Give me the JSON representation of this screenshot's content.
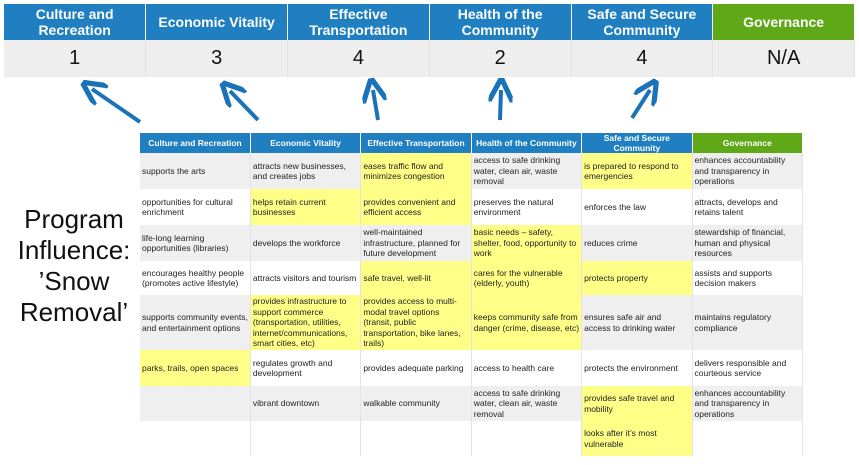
{
  "colors": {
    "header_blue": "#1f7fc1",
    "governance_green": "#5fa818",
    "highlight": "#ffff88",
    "arrow": "#1a73b8"
  },
  "scores": [
    {
      "category": "Culture and Recreation",
      "score": "1"
    },
    {
      "category": "Economic Vitality",
      "score": "3"
    },
    {
      "category": "Effective Transportation",
      "score": "4"
    },
    {
      "category": "Health of the Community",
      "score": "2"
    },
    {
      "category": "Safe and Secure Community",
      "score": "4"
    },
    {
      "category": "Governance",
      "score": "N/A"
    }
  ],
  "program_label": "Program Influence: ’Snow Removal’",
  "grid": {
    "headers": [
      "Culture and Recreation",
      "Economic Vitality",
      "Effective Transportation",
      "Health of the Community",
      "Safe and Secure Community",
      "Governance"
    ],
    "rows": [
      [
        {
          "text": "supports the arts",
          "highlight": false
        },
        {
          "text": "attracts new businesses, and creates jobs",
          "highlight": false
        },
        {
          "text": "eases traffic flow and minimizes congestion",
          "highlight": true
        },
        {
          "text": "access to safe drinking water, clean air, waste removal",
          "highlight": false
        },
        {
          "text": "is prepared to respond to emergencies",
          "highlight": true
        },
        {
          "text": "enhances accountability and transparency in operations",
          "highlight": false
        }
      ],
      [
        {
          "text": "opportunities for cultural enrichment",
          "highlight": false
        },
        {
          "text": "helps retain current businesses",
          "highlight": true
        },
        {
          "text": "provides convenient and efficient access",
          "highlight": true
        },
        {
          "text": "preserves the natural environment",
          "highlight": false
        },
        {
          "text": "enforces the law",
          "highlight": false
        },
        {
          "text": "attracts, develops and retains talent",
          "highlight": false
        }
      ],
      [
        {
          "text": "life-long learning opportunities (libraries)",
          "highlight": false
        },
        {
          "text": "develops the workforce",
          "highlight": false
        },
        {
          "text": "well-maintained infrastructure, planned for future development",
          "highlight": false
        },
        {
          "text": "basic needs – safety, shelter, food, opportunity to work",
          "highlight": true
        },
        {
          "text": "reduces crime",
          "highlight": false
        },
        {
          "text": "stewardship of financial, human and physical resources",
          "highlight": false
        }
      ],
      [
        {
          "text": "encourages healthy people (promotes active lifestyle)",
          "highlight": false
        },
        {
          "text": "attracts visitors and tourism",
          "highlight": false
        },
        {
          "text": "safe travel, well-lit",
          "highlight": true
        },
        {
          "text": "cares for the vulnerable (elderly, youth)",
          "highlight": true
        },
        {
          "text": "protects property",
          "highlight": true
        },
        {
          "text": "assists and supports decision makers",
          "highlight": false
        }
      ],
      [
        {
          "text": "supports community events, and entertainment options",
          "highlight": false
        },
        {
          "text": "provides infrastructure to support commerce (transportation, utilities, internet/communications, smart cities, etc)",
          "highlight": true
        },
        {
          "text": "provides access to multi-modal travel options (transit, public transportation, bike lanes, trails)",
          "highlight": true
        },
        {
          "text": "keeps community safe from danger (crime, disease, etc)",
          "highlight": true
        },
        {
          "text": "ensures safe air and access to drinking water",
          "highlight": false
        },
        {
          "text": "maintains regulatory compliance",
          "highlight": false
        }
      ],
      [
        {
          "text": "parks, trails, open spaces",
          "highlight": true
        },
        {
          "text": "regulates growth and development",
          "highlight": false
        },
        {
          "text": "provides adequate parking",
          "highlight": false
        },
        {
          "text": "access to health care",
          "highlight": false
        },
        {
          "text": "protects the environment",
          "highlight": false
        },
        {
          "text": "delivers responsible and courteous service",
          "highlight": false
        }
      ],
      [
        {
          "text": "",
          "highlight": false
        },
        {
          "text": "vibrant downtown",
          "highlight": false
        },
        {
          "text": "walkable community",
          "highlight": false
        },
        {
          "text": "access to safe drinking water, clean air, waste removal",
          "highlight": false
        },
        {
          "text": "provides safe travel and mobility",
          "highlight": true
        },
        {
          "text": "enhances accountability and transparency in operations",
          "highlight": false
        }
      ],
      [
        {
          "text": "",
          "highlight": false
        },
        {
          "text": "",
          "highlight": false
        },
        {
          "text": "",
          "highlight": false
        },
        {
          "text": "",
          "highlight": false
        },
        {
          "text": "looks after it’s most vulnerable",
          "highlight": true
        },
        {
          "text": "",
          "highlight": false
        }
      ]
    ]
  }
}
